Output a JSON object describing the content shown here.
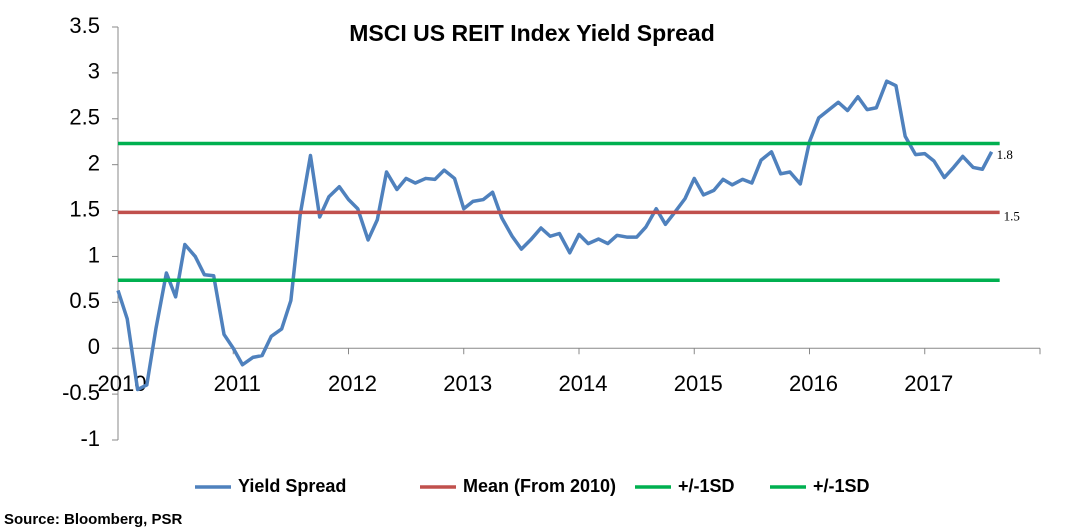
{
  "chart_data": {
    "type": "line",
    "title": "MSCI US REIT Index Yield Spread",
    "source": "Source: Bloomberg, PSR",
    "xlim": [
      2010,
      2018
    ],
    "xticks": [
      2010,
      2011,
      2012,
      2013,
      2014,
      2015,
      2016,
      2017
    ],
    "ylim": [
      -1,
      3.5
    ],
    "yticks": [
      3.5,
      3,
      2.5,
      2,
      1.5,
      1,
      0.5,
      0,
      -0.5,
      -1
    ],
    "grid": false,
    "legend": "bottom",
    "annotations": [
      "1.8"
    ],
    "series": [
      {
        "name": "Yield Spread",
        "color": "#4f81bd",
        "x": [
          2010.0,
          2010.08,
          2010.17,
          2010.25,
          2010.33,
          2010.42,
          2010.5,
          2010.58,
          2010.67,
          2010.75,
          2010.83,
          2010.92,
          2011.0,
          2011.08,
          2011.17,
          2011.25,
          2011.33,
          2011.42,
          2011.5,
          2011.58,
          2011.67,
          2011.75,
          2011.83,
          2011.92,
          2012.0,
          2012.08,
          2012.17,
          2012.25,
          2012.33,
          2012.42,
          2012.5,
          2012.58,
          2012.67,
          2012.75,
          2012.83,
          2012.92,
          2013.0,
          2013.08,
          2013.17,
          2013.25,
          2013.33,
          2013.42,
          2013.5,
          2013.58,
          2013.67,
          2013.75,
          2013.83,
          2013.92,
          2014.0,
          2014.08,
          2014.17,
          2014.25,
          2014.33,
          2014.42,
          2014.5,
          2014.58,
          2014.67,
          2014.75,
          2014.83,
          2014.92,
          2015.0,
          2015.08,
          2015.17,
          2015.25,
          2015.33,
          2015.42,
          2015.5,
          2015.58,
          2015.67,
          2015.75,
          2015.83,
          2015.92,
          2016.0,
          2016.08,
          2016.17,
          2016.25,
          2016.33,
          2016.42,
          2016.5,
          2016.58,
          2016.67,
          2016.75,
          2016.83,
          2016.92,
          2017.0,
          2017.08,
          2017.17,
          2017.25,
          2017.33,
          2017.42,
          2017.5,
          2017.58
        ],
        "values": [
          0.63,
          0.32,
          -0.45,
          -0.4,
          0.22,
          0.82,
          0.56,
          1.13,
          1.0,
          0.8,
          0.79,
          0.15,
          0.0,
          -0.18,
          -0.1,
          -0.08,
          0.13,
          0.21,
          0.52,
          1.45,
          2.1,
          1.43,
          1.65,
          1.76,
          1.62,
          1.52,
          1.18,
          1.4,
          1.92,
          1.73,
          1.85,
          1.8,
          1.85,
          1.84,
          1.94,
          1.85,
          1.52,
          1.6,
          1.62,
          1.7,
          1.42,
          1.22,
          1.08,
          1.18,
          1.31,
          1.22,
          1.25,
          1.04,
          1.24,
          1.14,
          1.19,
          1.14,
          1.23,
          1.21,
          1.21,
          1.32,
          1.52,
          1.35,
          1.48,
          1.63,
          1.85,
          1.67,
          1.72,
          1.84,
          1.78,
          1.84,
          1.8,
          2.05,
          2.14,
          1.9,
          1.92,
          1.79,
          2.25,
          2.51,
          2.6,
          2.68,
          2.59,
          2.74,
          2.6,
          2.62,
          2.91,
          2.86,
          2.31,
          2.11,
          2.12,
          2.04,
          1.86,
          1.97,
          2.09,
          1.97,
          1.95,
          2.14
        ]
      },
      {
        "name": "Mean (From 2010)",
        "color": "#c0504d",
        "x": [
          2010,
          2017.65
        ],
        "values": [
          1.48,
          1.48
        ],
        "value_labels": [
          null,
          "1.5"
        ]
      },
      {
        "name": "+/-1SD",
        "color": "#00b050",
        "x": [
          2010,
          2017.65
        ],
        "values": [
          2.23,
          2.23
        ]
      },
      {
        "name": "+/-1SD",
        "color": "#00b050",
        "x": [
          2010,
          2017.65
        ],
        "values": [
          0.74,
          0.74
        ]
      }
    ]
  }
}
